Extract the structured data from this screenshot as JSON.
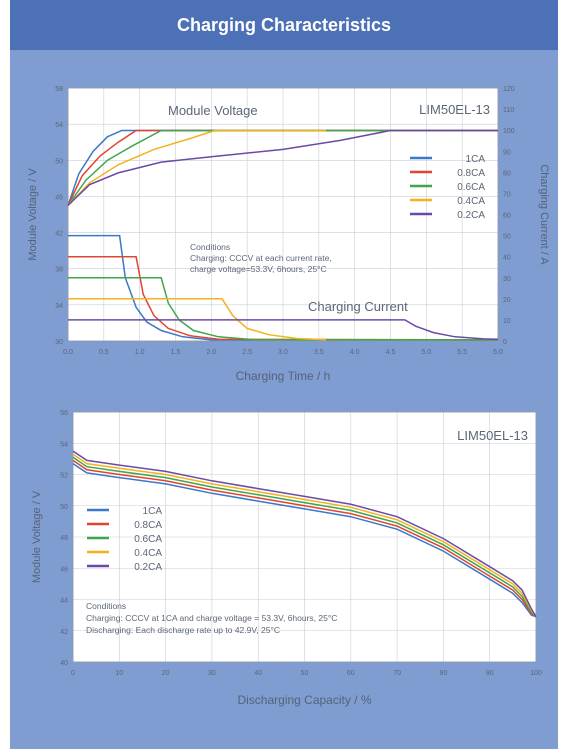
{
  "header": {
    "title": "Charging Characteristics"
  },
  "colors": {
    "panel": "#7f9dd0",
    "header": "#4c71b6",
    "text": "#5b6677",
    "plot_bg": "#ffffff",
    "grid": "#c9ced6",
    "series": [
      "#3a78c9",
      "#e2442f",
      "#3fa64e",
      "#f2b31d",
      "#6a4aa6"
    ]
  },
  "chart_data": [
    {
      "type": "line",
      "model_label": "LIM50EL-13",
      "xlabel": "Charging Time / h",
      "ylabel": "Module Voltage / V",
      "y2label": "Charging Current / A",
      "xlim": [
        0,
        6.0
      ],
      "ylim": [
        30,
        58
      ],
      "y2lim": [
        0,
        120
      ],
      "xticks": [
        "0.0",
        "0.5",
        "1.0",
        "1.5",
        "2.0",
        "2.5",
        "3.0",
        "3.5",
        "4.0",
        "4.5",
        "5.0",
        "5.5",
        "6.0"
      ],
      "yticks": [
        "30",
        "34",
        "38",
        "42",
        "46",
        "50",
        "54",
        "58"
      ],
      "y2ticks": [
        "0",
        "10",
        "20",
        "30",
        "40",
        "50",
        "60",
        "70",
        "80",
        "90",
        "100",
        "110",
        "120"
      ],
      "grid": true,
      "legend_position": "right",
      "annotations": [
        "Module Voltage",
        "Charging Current"
      ],
      "conditions": [
        "Conditions",
        "Charging: CCCV at each current rate,",
        "charge voltage=53.3V, 6hours, 25°C"
      ],
      "series": [
        {
          "name": "1CA",
          "voltage": [
            [
              0,
              45
            ],
            [
              0.15,
              48.5
            ],
            [
              0.35,
              51
            ],
            [
              0.55,
              52.6
            ],
            [
              0.75,
              53.3
            ],
            [
              6.0,
              53.3
            ]
          ],
          "current": [
            [
              0,
              50
            ],
            [
              0.72,
              50
            ],
            [
              0.8,
              30
            ],
            [
              0.95,
              16
            ],
            [
              1.1,
              9
            ],
            [
              1.3,
              5
            ],
            [
              1.6,
              2
            ],
            [
              2.0,
              0.5
            ],
            [
              6.0,
              0.5
            ]
          ]
        },
        {
          "name": "0.8CA",
          "voltage": [
            [
              0,
              45
            ],
            [
              0.2,
              48.3
            ],
            [
              0.45,
              50.5
            ],
            [
              0.7,
              52
            ],
            [
              0.95,
              53.3
            ],
            [
              6.0,
              53.3
            ]
          ],
          "current": [
            [
              0,
              40
            ],
            [
              0.95,
              40
            ],
            [
              1.05,
              22
            ],
            [
              1.2,
              12
            ],
            [
              1.4,
              6
            ],
            [
              1.7,
              2.5
            ],
            [
              2.1,
              0.8
            ],
            [
              6.0,
              0.5
            ]
          ]
        },
        {
          "name": "0.6CA",
          "voltage": [
            [
              0,
              45
            ],
            [
              0.25,
              47.8
            ],
            [
              0.55,
              50
            ],
            [
              0.9,
              51.6
            ],
            [
              1.3,
              53.3
            ],
            [
              6.0,
              53.3
            ]
          ],
          "current": [
            [
              0,
              30
            ],
            [
              1.3,
              30
            ],
            [
              1.4,
              18
            ],
            [
              1.55,
              10
            ],
            [
              1.75,
              5
            ],
            [
              2.1,
              2
            ],
            [
              2.6,
              0.6
            ],
            [
              6.0,
              0.5
            ]
          ]
        },
        {
          "name": "0.4CA",
          "voltage": [
            [
              0,
              45
            ],
            [
              0.3,
              47.5
            ],
            [
              0.7,
              49.5
            ],
            [
              1.2,
              51.2
            ],
            [
              1.7,
              52.4
            ],
            [
              2.05,
              53.3
            ],
            [
              3.6,
              53.3
            ]
          ],
          "current": [
            [
              0,
              20
            ],
            [
              2.15,
              20
            ],
            [
              2.3,
              12
            ],
            [
              2.5,
              6
            ],
            [
              2.8,
              3
            ],
            [
              3.2,
              1.2
            ],
            [
              3.6,
              0.6
            ]
          ]
        },
        {
          "name": "0.2CA",
          "voltage": [
            [
              0,
              45
            ],
            [
              0.3,
              47.3
            ],
            [
              0.7,
              48.6
            ],
            [
              1.3,
              49.8
            ],
            [
              2.0,
              50.4
            ],
            [
              3.0,
              51.2
            ],
            [
              3.8,
              52.2
            ],
            [
              4.5,
              53.3
            ],
            [
              6.0,
              53.3
            ]
          ],
          "current": [
            [
              0,
              10
            ],
            [
              4.7,
              10
            ],
            [
              4.85,
              7
            ],
            [
              5.1,
              4
            ],
            [
              5.4,
              2
            ],
            [
              5.8,
              1
            ],
            [
              6.0,
              0.8
            ]
          ]
        }
      ]
    },
    {
      "type": "line",
      "model_label": "LIM50EL-13",
      "xlabel": "Discharging Capacity / %",
      "ylabel": "Module Voltage / V",
      "xlim": [
        0,
        100
      ],
      "ylim": [
        40,
        56
      ],
      "xticks": [
        "0",
        "10",
        "20",
        "30",
        "40",
        "50",
        "60",
        "70",
        "80",
        "90",
        "100"
      ],
      "yticks": [
        "40",
        "42",
        "44",
        "46",
        "48",
        "50",
        "52",
        "54",
        "56"
      ],
      "grid": true,
      "legend_position": "left",
      "conditions": [
        "Conditions",
        "Charging: CCCV at 1CA and charge voltage = 53.3V, 6hours, 25°C",
        "Discharging: Each discharge rate up to 42.9V, 25°C"
      ],
      "series": [
        {
          "name": "1CA",
          "points": [
            [
              0,
              52.7
            ],
            [
              3,
              52.1
            ],
            [
              10,
              51.8
            ],
            [
              20,
              51.4
            ],
            [
              30,
              50.8
            ],
            [
              40,
              50.3
            ],
            [
              50,
              49.8
            ],
            [
              60,
              49.3
            ],
            [
              70,
              48.5
            ],
            [
              80,
              47.1
            ],
            [
              90,
              45.3
            ],
            [
              95,
              44.4
            ],
            [
              97,
              43.8
            ],
            [
              99,
              43.0
            ],
            [
              100,
              42.9
            ]
          ]
        },
        {
          "name": "0.8CA",
          "points": [
            [
              0,
              52.9
            ],
            [
              3,
              52.3
            ],
            [
              10,
              52.0
            ],
            [
              20,
              51.6
            ],
            [
              30,
              51.0
            ],
            [
              40,
              50.5
            ],
            [
              50,
              50.0
            ],
            [
              60,
              49.5
            ],
            [
              70,
              48.7
            ],
            [
              80,
              47.3
            ],
            [
              90,
              45.5
            ],
            [
              95,
              44.6
            ],
            [
              97,
              44.0
            ],
            [
              99,
              43.1
            ],
            [
              100,
              42.9
            ]
          ]
        },
        {
          "name": "0.6CA",
          "points": [
            [
              0,
              53.1
            ],
            [
              3,
              52.5
            ],
            [
              10,
              52.2
            ],
            [
              20,
              51.8
            ],
            [
              30,
              51.2
            ],
            [
              40,
              50.7
            ],
            [
              50,
              50.2
            ],
            [
              60,
              49.7
            ],
            [
              70,
              48.9
            ],
            [
              80,
              47.5
            ],
            [
              90,
              45.7
            ],
            [
              95,
              44.8
            ],
            [
              97,
              44.2
            ],
            [
              99,
              43.2
            ],
            [
              100,
              42.9
            ]
          ]
        },
        {
          "name": "0.4CA",
          "points": [
            [
              0,
              53.3
            ],
            [
              3,
              52.7
            ],
            [
              10,
              52.4
            ],
            [
              20,
              52.0
            ],
            [
              30,
              51.4
            ],
            [
              40,
              50.9
            ],
            [
              50,
              50.4
            ],
            [
              60,
              49.9
            ],
            [
              70,
              49.1
            ],
            [
              80,
              47.7
            ],
            [
              90,
              45.9
            ],
            [
              95,
              45.0
            ],
            [
              97,
              44.4
            ],
            [
              99,
              43.3
            ],
            [
              100,
              42.9
            ]
          ]
        },
        {
          "name": "0.2CA",
          "points": [
            [
              0,
              53.5
            ],
            [
              3,
              52.9
            ],
            [
              10,
              52.6
            ],
            [
              20,
              52.2
            ],
            [
              30,
              51.6
            ],
            [
              40,
              51.1
            ],
            [
              50,
              50.6
            ],
            [
              60,
              50.1
            ],
            [
              70,
              49.3
            ],
            [
              80,
              47.9
            ],
            [
              90,
              46.1
            ],
            [
              95,
              45.2
            ],
            [
              97,
              44.6
            ],
            [
              99,
              43.4
            ],
            [
              100,
              42.9
            ]
          ]
        }
      ]
    }
  ]
}
